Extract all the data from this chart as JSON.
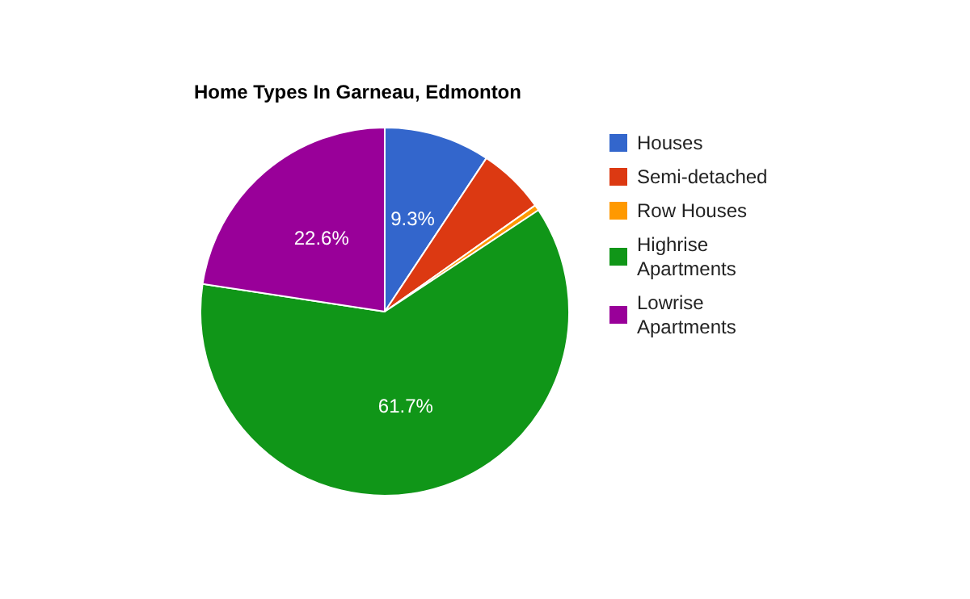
{
  "chart_data": {
    "type": "pie",
    "title": "Home Types In Garneau, Edmonton",
    "categories": [
      "Houses",
      "Semi-detached",
      "Row Houses",
      "Highrise Apartments",
      "Lowrise Apartments"
    ],
    "values": [
      9.3,
      5.9,
      0.5,
      61.7,
      22.6
    ],
    "colors": [
      "#3366cc",
      "#dc3912",
      "#ff9900",
      "#109618",
      "#990099"
    ],
    "value_labels": [
      "9.3%",
      null,
      null,
      "61.7%",
      "22.6%"
    ],
    "legend": "right"
  }
}
